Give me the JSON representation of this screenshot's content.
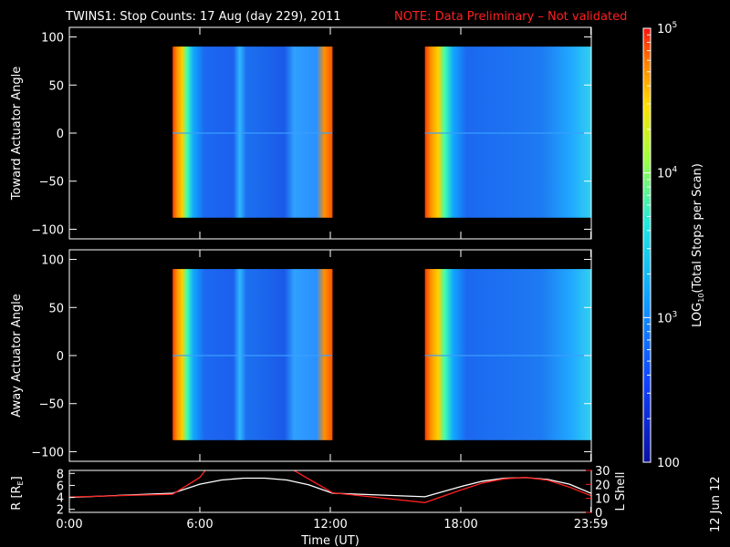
{
  "title": {
    "main": "TWINS1: Stop Counts: 17 Aug (day 229), 2011",
    "note": "NOTE: Data Preliminary – Not validated"
  },
  "stamp": "12 Jun 12",
  "colors": {
    "note": "#ff2020",
    "background": "#000000",
    "axes": "#ffffff",
    "lshell": "#ff2020",
    "radius": "#ffffff"
  },
  "chart_data": [
    {
      "type": "heatmap",
      "panel": "toward",
      "ylabel": "Toward Actuator Angle",
      "xlim": [
        0,
        24
      ],
      "ylim": [
        -110,
        110
      ],
      "yticks": [
        "100",
        "50",
        "0",
        "−50",
        "−100"
      ],
      "ytick_values": [
        100,
        50,
        0,
        -50,
        -100
      ],
      "data_blocks_hours": [
        [
          4.75,
          12.1
        ],
        [
          16.35,
          23.98
        ]
      ],
      "angle_range": [
        -88,
        90
      ]
    },
    {
      "type": "heatmap",
      "panel": "away",
      "ylabel": "Away Actuator Angle",
      "xlim": [
        0,
        24
      ],
      "ylim": [
        -110,
        110
      ],
      "yticks": [
        "100",
        "50",
        "0",
        "−50",
        "−100"
      ],
      "ytick_values": [
        100,
        50,
        0,
        -50,
        -100
      ],
      "data_blocks_hours": [
        [
          4.75,
          12.1
        ],
        [
          16.35,
          23.98
        ]
      ],
      "angle_range": [
        -88,
        90
      ]
    },
    {
      "type": "line",
      "panel": "orbit",
      "ylabel_left": "R [R",
      "ylabel_left_sub": "E",
      "ylabel_left_close": "]",
      "ylabel_right": "L Shell",
      "xlabel": "Time (UT)",
      "xlim": [
        0,
        24
      ],
      "xticks": [
        "0:00",
        "6:00",
        "12:00",
        "18:00",
        "23:59"
      ],
      "xtick_values": [
        0,
        6,
        12,
        18,
        23.98
      ],
      "ylim_left": [
        1.5,
        8.5
      ],
      "yticks_left": [
        "2",
        "4",
        "6",
        "8"
      ],
      "ytick_values_left": [
        2,
        4,
        6,
        8
      ],
      "ylim_right": [
        0,
        30
      ],
      "yticks_right": [
        "0",
        "10",
        "20",
        "30"
      ],
      "ytick_values_right": [
        0,
        10,
        20,
        30
      ],
      "series": [
        {
          "axis": "left",
          "color": "#ffffff",
          "x": [
            0,
            4.75,
            6,
            7,
            8,
            9,
            10,
            11,
            12.1,
            16.35,
            18,
            19,
            20,
            21,
            22,
            23,
            23.98
          ],
          "y": [
            4.0,
            4.7,
            6.2,
            6.9,
            7.2,
            7.2,
            6.9,
            6.1,
            4.7,
            4.1,
            5.8,
            6.7,
            7.2,
            7.3,
            7.0,
            6.2,
            4.7
          ]
        },
        {
          "axis": "right",
          "color": "#ff2020",
          "x": [
            0,
            4.75,
            6,
            6.35,
            10.1,
            12.1,
            16.35,
            18,
            19,
            20,
            21,
            22,
            23,
            23.98
          ],
          "y": [
            11,
            13,
            25,
            32,
            32,
            14,
            7,
            16,
            21,
            24,
            25,
            23,
            18,
            12
          ]
        }
      ]
    },
    {
      "type": "colorbar",
      "ylabel": "LOG",
      "ylabel_sub": "10",
      "ylabel_rest": "(Total Stops per Scan)",
      "scale": "log",
      "range": [
        100,
        100000
      ],
      "ticks": [
        {
          "value": 100000,
          "base": "10",
          "exp": "5"
        },
        {
          "value": 10000,
          "base": "10",
          "exp": "4"
        },
        {
          "value": 1000,
          "base": "10",
          "exp": "3"
        },
        {
          "value": 100,
          "base": "100",
          "exp": ""
        }
      ]
    }
  ]
}
